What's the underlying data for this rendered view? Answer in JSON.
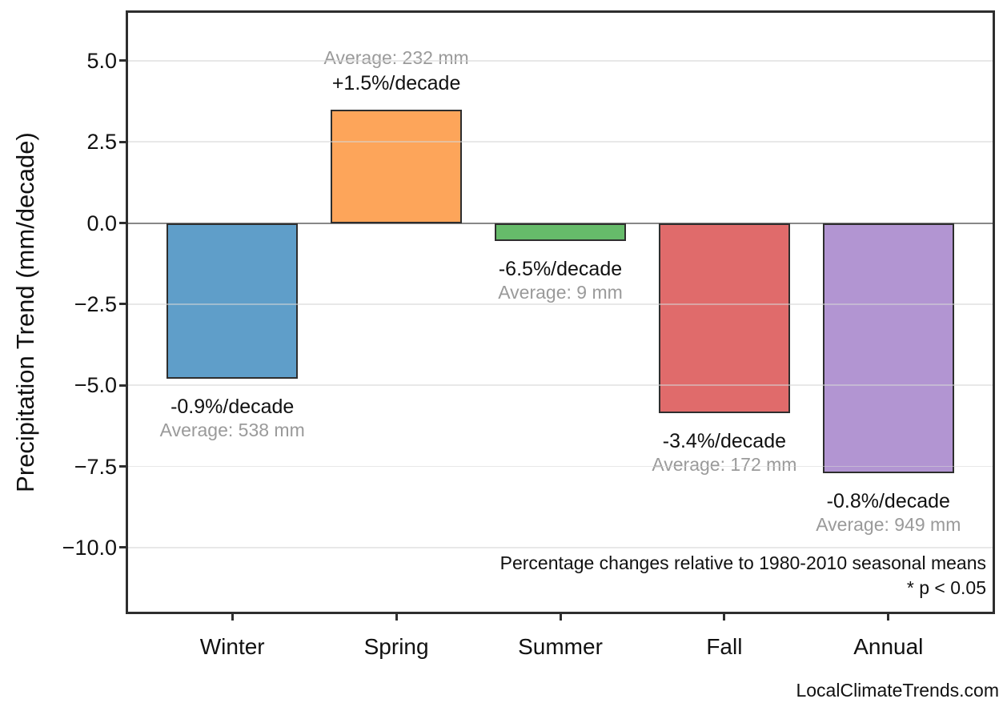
{
  "figure": {
    "background": "#ffffff"
  },
  "chart_data": {
    "type": "bar",
    "title": "",
    "xlabel": "",
    "ylabel": "Precipitation Trend (mm/decade)",
    "categories": [
      "Winter",
      "Spring",
      "Summer",
      "Fall",
      "Annual"
    ],
    "values": [
      -4.8,
      3.5,
      -0.55,
      -5.85,
      -7.7
    ],
    "pct_per_decade": [
      -0.9,
      1.5,
      -6.5,
      -3.4,
      -0.8
    ],
    "averages_mm": [
      538,
      232,
      9,
      172,
      949
    ],
    "bar_labels": [
      {
        "pct": "-0.9%/decade",
        "avg": "Average: 538 mm"
      },
      {
        "pct": "+1.5%/decade",
        "avg": "Average: 232 mm"
      },
      {
        "pct": "-6.5%/decade",
        "avg": "Average: 9 mm"
      },
      {
        "pct": "-3.4%/decade",
        "avg": "Average: 172 mm"
      },
      {
        "pct": "-0.8%/decade",
        "avg": "Average: 949 mm"
      }
    ],
    "bar_colors": [
      "#5f9ec9",
      "#fda55a",
      "#66bb6a",
      "#e06b6b",
      "#b295d2"
    ],
    "bar_edge_color": "#2e2e2e",
    "yticks": [
      5.0,
      2.5,
      0.0,
      -2.5,
      -5.0,
      -7.5,
      -10.0
    ],
    "ytick_labels": [
      "5.0",
      "2.5",
      "0.0",
      "−2.5",
      "−5.0",
      "−7.5",
      "−10.0"
    ],
    "ylim": [
      -12.05,
      6.55
    ],
    "grid": true,
    "legend": false,
    "zero_line_color": "#888888",
    "annotations": [
      "Percentage changes relative to 1980-2010 seasonal means",
      "* p < 0.05"
    ],
    "watermark": "LocalClimateTrends.com"
  }
}
